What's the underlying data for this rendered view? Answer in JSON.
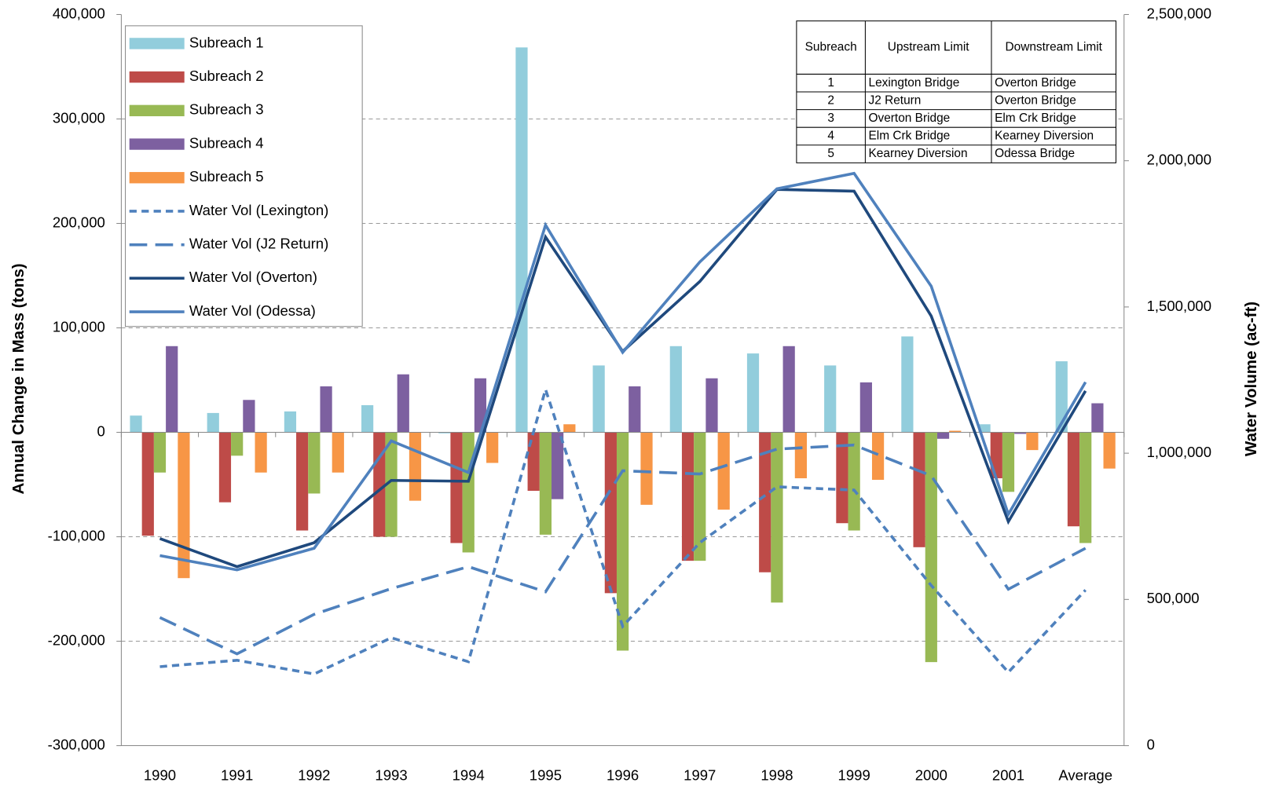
{
  "chart_data": {
    "type": "bar",
    "categories": [
      "1990",
      "1991",
      "1992",
      "1993",
      "1994",
      "1995",
      "1996",
      "1997",
      "1998",
      "1999",
      "2000",
      "2001",
      "Average"
    ],
    "ylabel": "Annual Change in Mass (tons)",
    "y2label": "Water Volume (ac-ft)",
    "ylim": [
      -300000,
      400000
    ],
    "yticks": [
      {
        "value": -300000,
        "label": "-300,000"
      },
      {
        "value": -200000,
        "label": "-200,000"
      },
      {
        "value": -100000,
        "label": "-100,000"
      },
      0,
      {
        "value": 100000,
        "label": "100,000"
      },
      {
        "value": 200000,
        "label": "200,000"
      },
      {
        "value": 300000,
        "label": "300,000"
      },
      {
        "value": 400000,
        "label": "400,000"
      }
    ],
    "y2lim": [
      0,
      2500000
    ],
    "y2ticks": [
      0,
      {
        "value": 500000,
        "label": "500,000"
      },
      {
        "value": 1000000,
        "label": "1,000,000"
      },
      {
        "value": 1500000,
        "label": "1,500,000"
      },
      {
        "value": 2000000,
        "label": "2,000,000"
      },
      {
        "value": 2500000,
        "label": "2,500,000"
      }
    ],
    "grid": true,
    "legend": "upper left",
    "series": [
      {
        "name": "Subreach 1",
        "type": "bar",
        "color": "#92cddc",
        "values": [
          16000,
          18500,
          20000,
          26000,
          -1000,
          368500,
          64000,
          82500,
          75500,
          64000,
          91800,
          7700,
          68000
        ]
      },
      {
        "name": "Subreach 2",
        "type": "bar",
        "color": "#be4b48",
        "values": [
          -99000,
          -67000,
          -94000,
          -100000,
          -106000,
          -56000,
          -154000,
          -123000,
          -134000,
          -87000,
          -110000,
          -44000,
          -90000
        ]
      },
      {
        "name": "Subreach 3",
        "type": "bar",
        "color": "#98b954",
        "values": [
          -38500,
          -22400,
          -58600,
          -100000,
          -115000,
          -98000,
          -209000,
          -123000,
          -163000,
          -94000,
          -220000,
          -57000,
          -106000
        ]
      },
      {
        "name": "Subreach 4",
        "type": "bar",
        "color": "#7d60a0",
        "values": [
          82500,
          31000,
          44000,
          55500,
          51700,
          -64000,
          44000,
          51700,
          82500,
          47800,
          -6200,
          -1500,
          27800
        ]
      },
      {
        "name": "Subreach 5",
        "type": "bar",
        "color": "#f79646",
        "values": [
          -139600,
          -38500,
          -38500,
          -65500,
          -29300,
          7700,
          -69400,
          -74000,
          -44000,
          -45500,
          1500,
          -17000,
          -34700
        ]
      },
      {
        "name": "Water Vol (Lexington)",
        "type": "line",
        "axis": "y2",
        "color": "#4f81bd",
        "dash": "short",
        "values": [
          270000,
          292000,
          245000,
          369000,
          287000,
          1218000,
          408000,
          694000,
          885000,
          874000,
          548000,
          251000,
          532000
        ]
      },
      {
        "name": "Water Vol (J2 Return)",
        "type": "line",
        "axis": "y2",
        "color": "#4f81bd",
        "dash": "long",
        "values": [
          438000,
          314000,
          449000,
          537000,
          612000,
          526000,
          940000,
          929000,
          1014000,
          1028000,
          923000,
          535000,
          675000
        ]
      },
      {
        "name": "Water Vol (Overton)",
        "type": "line",
        "axis": "y2",
        "color": "#1f497d",
        "dash": "solid",
        "values": [
          708000,
          612000,
          694000,
          907000,
          904000,
          1739000,
          1348000,
          1587000,
          1902000,
          1896000,
          1469000,
          766000,
          1213000
        ]
      },
      {
        "name": "Water Vol (Odessa)",
        "type": "line",
        "axis": "y2",
        "color": "#4f81bd",
        "dash": "solid",
        "values": [
          650000,
          601000,
          675000,
          1042000,
          934000,
          1780000,
          1345000,
          1654000,
          1904000,
          1957000,
          1571000,
          791000,
          1243000
        ]
      }
    ],
    "table": {
      "header": [
        "Subreach",
        "Upstream Limit",
        "Downstream Limit"
      ],
      "rows": [
        [
          "1",
          "Lexington Bridge",
          "Overton Bridge"
        ],
        [
          "2",
          "J2 Return",
          "Overton Bridge"
        ],
        [
          "3",
          "Overton Bridge",
          "Elm Crk Bridge"
        ],
        [
          "4",
          "Elm Crk Bridge",
          "Kearney Diversion"
        ],
        [
          "5",
          "Kearney Diversion",
          "Odessa Bridge"
        ]
      ]
    }
  }
}
